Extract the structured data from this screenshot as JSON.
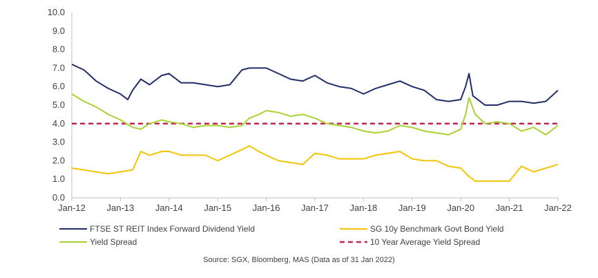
{
  "chart_data": {
    "type": "line",
    "title": "",
    "xlabel": "",
    "ylabel": "",
    "ylim": [
      0,
      10
    ],
    "xlim": [
      "Jan-12",
      "Jan-22"
    ],
    "y_ticks": [
      "0.0",
      "1.0",
      "2.0",
      "3.0",
      "4.0",
      "5.0",
      "6.0",
      "7.0",
      "8.0",
      "9.0",
      "10.0"
    ],
    "x_ticks": [
      "Jan-12",
      "Jan-13",
      "Jan-14",
      "Jan-15",
      "Jan-16",
      "Jan-17",
      "Jan-18",
      "Jan-19",
      "Jan-20",
      "Jan-21",
      "Jan-22"
    ],
    "grid": false,
    "legend_position": "bottom",
    "series": [
      {
        "name": "FTSE ST REIT Index Forward Dividend Yield",
        "color": "#1f2d6b",
        "style": "solid",
        "x": [
          2012.0,
          2012.25,
          2012.5,
          2012.75,
          2013.0,
          2013.15,
          2013.25,
          2013.42,
          2013.6,
          2013.85,
          2014.0,
          2014.25,
          2014.5,
          2014.75,
          2015.0,
          2015.25,
          2015.5,
          2015.65,
          2015.85,
          2016.0,
          2016.25,
          2016.5,
          2016.75,
          2017.0,
          2017.25,
          2017.5,
          2017.75,
          2018.0,
          2018.25,
          2018.5,
          2018.75,
          2019.0,
          2019.25,
          2019.5,
          2019.75,
          2020.0,
          2020.1,
          2020.17,
          2020.25,
          2020.5,
          2020.75,
          2021.0,
          2021.25,
          2021.5,
          2021.75,
          2022.0
        ],
        "y": [
          7.2,
          6.9,
          6.3,
          5.9,
          5.6,
          5.3,
          5.8,
          6.4,
          6.1,
          6.6,
          6.7,
          6.2,
          6.2,
          6.1,
          6.0,
          6.1,
          6.9,
          7.0,
          7.0,
          7.0,
          6.7,
          6.4,
          6.3,
          6.6,
          6.2,
          6.0,
          5.9,
          5.6,
          5.9,
          6.1,
          6.3,
          6.0,
          5.8,
          5.3,
          5.2,
          5.3,
          6.0,
          6.7,
          5.5,
          5.0,
          5.0,
          5.2,
          5.2,
          5.1,
          5.2,
          5.8
        ]
      },
      {
        "name": "SG 10y Benchmark Govt Bond Yield",
        "color": "#f2c500",
        "style": "solid",
        "x": [
          2012.0,
          2012.25,
          2012.5,
          2012.75,
          2013.0,
          2013.25,
          2013.42,
          2013.6,
          2013.85,
          2014.0,
          2014.25,
          2014.5,
          2014.75,
          2015.0,
          2015.25,
          2015.5,
          2015.65,
          2015.85,
          2016.0,
          2016.25,
          2016.5,
          2016.75,
          2017.0,
          2017.25,
          2017.5,
          2017.75,
          2018.0,
          2018.25,
          2018.5,
          2018.75,
          2019.0,
          2019.25,
          2019.5,
          2019.75,
          2020.0,
          2020.15,
          2020.3,
          2020.5,
          2020.75,
          2021.0,
          2021.25,
          2021.5,
          2021.75,
          2022.0
        ],
        "y": [
          1.6,
          1.5,
          1.4,
          1.3,
          1.4,
          1.5,
          2.5,
          2.3,
          2.5,
          2.5,
          2.3,
          2.3,
          2.3,
          2.0,
          2.3,
          2.6,
          2.8,
          2.5,
          2.3,
          2.0,
          1.9,
          1.8,
          2.4,
          2.3,
          2.1,
          2.1,
          2.1,
          2.3,
          2.4,
          2.5,
          2.1,
          2.0,
          2.0,
          1.7,
          1.6,
          1.2,
          0.9,
          0.9,
          0.9,
          0.9,
          1.7,
          1.4,
          1.6,
          1.8
        ]
      },
      {
        "name": "Yield Spread",
        "color": "#a8d232",
        "style": "solid",
        "x": [
          2012.0,
          2012.25,
          2012.5,
          2012.75,
          2013.0,
          2013.25,
          2013.42,
          2013.6,
          2013.85,
          2014.0,
          2014.25,
          2014.5,
          2014.75,
          2015.0,
          2015.25,
          2015.5,
          2015.65,
          2015.85,
          2016.0,
          2016.25,
          2016.5,
          2016.75,
          2017.0,
          2017.25,
          2017.5,
          2017.75,
          2018.0,
          2018.25,
          2018.5,
          2018.75,
          2019.0,
          2019.25,
          2019.5,
          2019.75,
          2020.0,
          2020.1,
          2020.17,
          2020.3,
          2020.5,
          2020.75,
          2021.0,
          2021.25,
          2021.5,
          2021.75,
          2022.0
        ],
        "y": [
          5.6,
          5.2,
          4.9,
          4.5,
          4.2,
          3.8,
          3.7,
          4.0,
          4.2,
          4.1,
          4.0,
          3.8,
          3.9,
          3.9,
          3.8,
          3.9,
          4.3,
          4.5,
          4.7,
          4.6,
          4.4,
          4.5,
          4.3,
          4.0,
          3.9,
          3.8,
          3.6,
          3.5,
          3.6,
          3.9,
          3.8,
          3.6,
          3.5,
          3.4,
          3.7,
          4.5,
          5.4,
          4.5,
          4.0,
          4.1,
          4.0,
          3.6,
          3.8,
          3.4,
          3.9
        ]
      },
      {
        "name": "10 Year Average Yield Spread",
        "color": "#c0264c",
        "style": "dashed",
        "x": [
          2012.0,
          2022.0
        ],
        "y": [
          4.0,
          4.0
        ]
      }
    ]
  },
  "source": "Source: SGX, Bloomberg, MAS (Data as of 31 Jan 2022)"
}
